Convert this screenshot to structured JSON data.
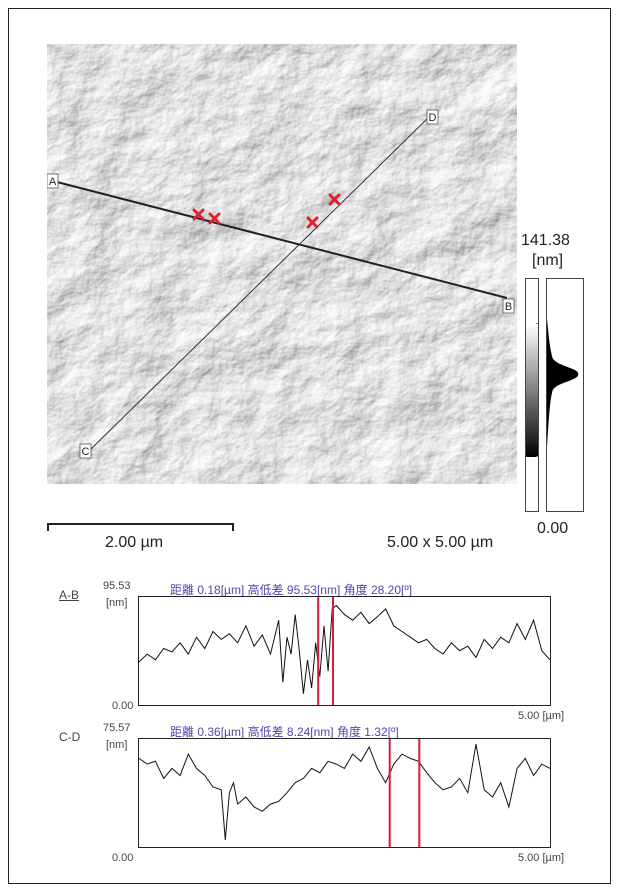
{
  "image": {
    "scale_bar_label": "2.00 µm",
    "size_label": "5.00 x 5.00 µm",
    "lines": [
      {
        "start_label": "A",
        "end_label": "B"
      },
      {
        "start_label": "C",
        "end_label": "D"
      }
    ]
  },
  "colorbar": {
    "max_value": "141.38",
    "unit": "[nm]",
    "min_value": "0.00",
    "gradient_colors": [
      "#ffffff",
      "#000000"
    ]
  },
  "chart_data": [
    {
      "type": "line",
      "profile_label": "A-B",
      "info": "距離 0.18[µm] 高低差 95.53[nm] 角度 28.20[º]",
      "y_max_label": "95.53",
      "y_unit": "[nm]",
      "y_min_label": "0.00",
      "x_end_label": "5.00 [µm]",
      "xlim": [
        0,
        5.0
      ],
      "ylim": [
        0,
        95.53
      ],
      "cursors": [
        2.18,
        2.36
      ],
      "x": [
        0.0,
        0.1,
        0.2,
        0.3,
        0.4,
        0.5,
        0.6,
        0.7,
        0.8,
        0.9,
        1.0,
        1.1,
        1.2,
        1.3,
        1.4,
        1.5,
        1.6,
        1.7,
        1.75,
        1.8,
        1.85,
        1.9,
        1.95,
        2.0,
        2.05,
        2.1,
        2.15,
        2.2,
        2.25,
        2.3,
        2.35,
        2.4,
        2.5,
        2.6,
        2.7,
        2.8,
        2.9,
        3.0,
        3.1,
        3.2,
        3.3,
        3.4,
        3.5,
        3.6,
        3.7,
        3.8,
        3.9,
        4.0,
        4.1,
        4.2,
        4.3,
        4.4,
        4.5,
        4.6,
        4.7,
        4.8,
        4.9,
        5.0
      ],
      "y": [
        38,
        45,
        40,
        50,
        47,
        55,
        45,
        60,
        50,
        65,
        58,
        63,
        55,
        70,
        52,
        62,
        45,
        75,
        20,
        60,
        45,
        80,
        48,
        10,
        40,
        15,
        55,
        25,
        70,
        30,
        85,
        88,
        80,
        75,
        82,
        72,
        78,
        85,
        70,
        65,
        60,
        55,
        58,
        50,
        45,
        55,
        48,
        52,
        42,
        58,
        50,
        60,
        55,
        72,
        58,
        75,
        48,
        40
      ]
    },
    {
      "type": "line",
      "profile_label": "C-D",
      "info": "距離 0.36[µm] 高低差 8.24[nm] 角度 1.32[º]",
      "y_max_label": "75.57",
      "y_unit": "[nm]",
      "y_min_label": "0.00",
      "x_end_label": "5.00 [µm]",
      "xlim": [
        0,
        5.0
      ],
      "ylim": [
        0,
        75.57
      ],
      "cursors": [
        3.05,
        3.41
      ],
      "x": [
        0.0,
        0.1,
        0.2,
        0.3,
        0.4,
        0.5,
        0.6,
        0.7,
        0.8,
        0.9,
        1.0,
        1.05,
        1.1,
        1.15,
        1.2,
        1.3,
        1.4,
        1.5,
        1.6,
        1.7,
        1.8,
        1.9,
        2.0,
        2.1,
        2.2,
        2.3,
        2.4,
        2.5,
        2.6,
        2.7,
        2.8,
        2.9,
        3.0,
        3.1,
        3.2,
        3.3,
        3.4,
        3.5,
        3.6,
        3.7,
        3.8,
        3.9,
        4.0,
        4.1,
        4.2,
        4.3,
        4.4,
        4.5,
        4.6,
        4.7,
        4.8,
        4.9,
        5.0
      ],
      "y": [
        62,
        58,
        60,
        48,
        55,
        50,
        65,
        55,
        50,
        42,
        40,
        5,
        38,
        45,
        30,
        35,
        28,
        25,
        30,
        32,
        38,
        45,
        48,
        55,
        52,
        60,
        58,
        55,
        65,
        60,
        70,
        55,
        45,
        58,
        65,
        62,
        60,
        52,
        45,
        40,
        42,
        48,
        38,
        72,
        40,
        35,
        45,
        28,
        55,
        62,
        50,
        58,
        55
      ]
    }
  ]
}
